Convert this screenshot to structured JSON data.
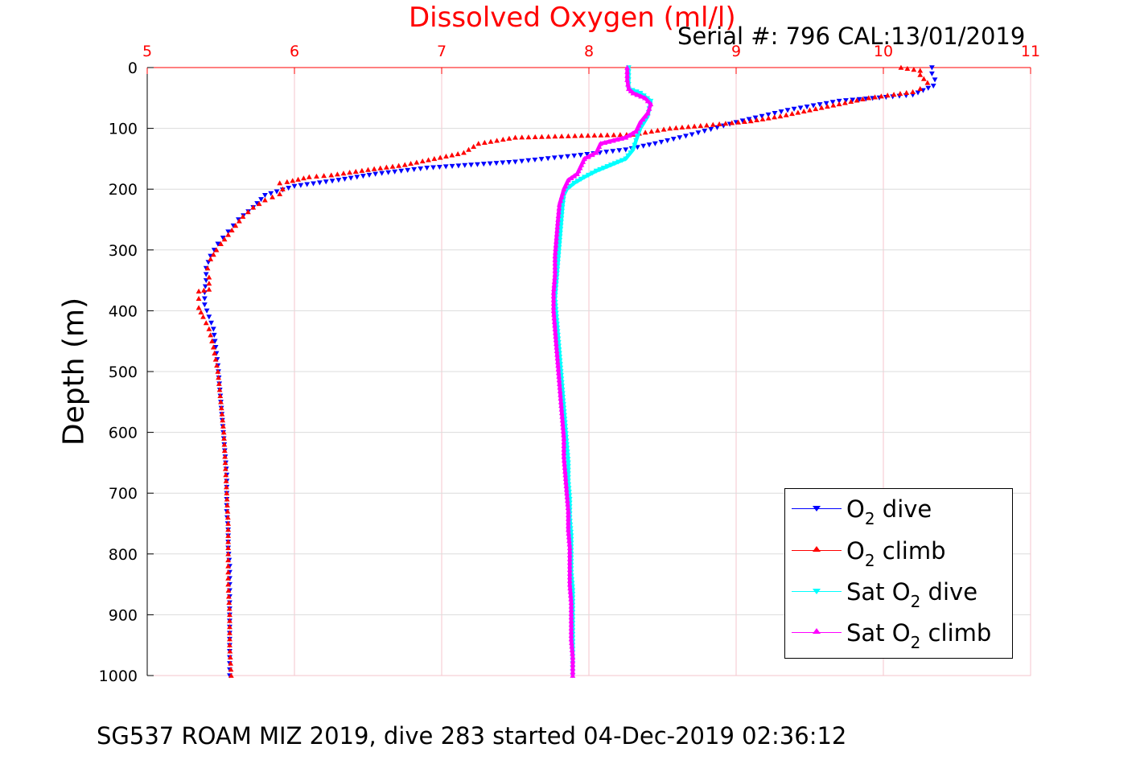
{
  "header": {
    "title": "Dissolved Oxygen (ml/l)",
    "serial": "Serial #: 796  CAL:13/01/2019"
  },
  "footer": {
    "text": "SG537 ROAM MIZ 2019, dive 283 started 04-Dec-2019 02:36:12"
  },
  "colors": {
    "title": "#ff0000",
    "x_ticks": "#ff0000",
    "grid": "#f4c6cc",
    "o2_dive": "#0000ff",
    "o2_climb": "#ff0000",
    "sat_dive": "#00ffff",
    "sat_climb": "#ff00ff"
  },
  "legend": {
    "items": [
      {
        "prefix": "O",
        "sub": "2",
        "suffix": " dive",
        "color": "#0000ff",
        "marker": "triangle-down"
      },
      {
        "prefix": "O",
        "sub": "2",
        "suffix": " climb",
        "color": "#ff0000",
        "marker": "triangle-up"
      },
      {
        "prefix": "Sat O",
        "sub": "2",
        "suffix": " dive",
        "color": "#00ffff",
        "marker": "triangle-down"
      },
      {
        "prefix": "Sat O",
        "sub": "2",
        "suffix": " climb",
        "color": "#ff00ff",
        "marker": "triangle-up"
      }
    ]
  },
  "chart_data": {
    "type": "line",
    "title": "Dissolved Oxygen (ml/l)",
    "xlabel": "",
    "ylabel": "Depth (m)",
    "xlim": [
      5,
      11
    ],
    "ylim": [
      0,
      1000
    ],
    "y_reversed": true,
    "x_axis_position": "top",
    "grid": true,
    "legend_position": "bottom-right",
    "x_ticks": [
      5,
      6,
      7,
      8,
      9,
      10,
      11
    ],
    "y_ticks": [
      0,
      100,
      200,
      300,
      400,
      500,
      600,
      700,
      800,
      900,
      1000
    ],
    "series": [
      {
        "name": "O2 dive",
        "color": "#0000ff",
        "marker": "triangle-down",
        "points": [
          [
            10.33,
            0
          ],
          [
            10.33,
            10
          ],
          [
            10.35,
            20
          ],
          [
            10.34,
            30
          ],
          [
            10.2,
            45
          ],
          [
            9.7,
            55
          ],
          [
            9.35,
            70
          ],
          [
            9.0,
            90
          ],
          [
            8.7,
            110
          ],
          [
            8.45,
            125
          ],
          [
            8.25,
            135
          ],
          [
            7.9,
            145
          ],
          [
            7.5,
            155
          ],
          [
            6.9,
            165
          ],
          [
            6.55,
            175
          ],
          [
            6.3,
            185
          ],
          [
            6.0,
            195
          ],
          [
            5.8,
            210
          ],
          [
            5.72,
            230
          ],
          [
            5.62,
            250
          ],
          [
            5.55,
            270
          ],
          [
            5.48,
            290
          ],
          [
            5.43,
            310
          ],
          [
            5.4,
            330
          ],
          [
            5.4,
            350
          ],
          [
            5.39,
            370
          ],
          [
            5.39,
            390
          ],
          [
            5.42,
            410
          ],
          [
            5.45,
            430
          ],
          [
            5.46,
            450
          ],
          [
            5.47,
            470
          ],
          [
            5.48,
            490
          ],
          [
            5.49,
            520
          ],
          [
            5.5,
            550
          ],
          [
            5.51,
            580
          ],
          [
            5.52,
            610
          ],
          [
            5.53,
            640
          ],
          [
            5.54,
            670
          ],
          [
            5.54,
            700
          ],
          [
            5.54,
            730
          ],
          [
            5.55,
            760
          ],
          [
            5.55,
            790
          ],
          [
            5.56,
            820
          ],
          [
            5.56,
            850
          ],
          [
            5.56,
            880
          ],
          [
            5.56,
            910
          ],
          [
            5.56,
            940
          ],
          [
            5.56,
            970
          ],
          [
            5.56,
            1000
          ]
        ]
      },
      {
        "name": "O2 climb",
        "color": "#ff0000",
        "marker": "triangle-up",
        "points": [
          [
            5.57,
            1000
          ],
          [
            5.56,
            950
          ],
          [
            5.56,
            900
          ],
          [
            5.55,
            850
          ],
          [
            5.55,
            800
          ],
          [
            5.55,
            750
          ],
          [
            5.54,
            700
          ],
          [
            5.53,
            650
          ],
          [
            5.52,
            600
          ],
          [
            5.5,
            550
          ],
          [
            5.48,
            500
          ],
          [
            5.45,
            460
          ],
          [
            5.42,
            430
          ],
          [
            5.38,
            410
          ],
          [
            5.35,
            395
          ],
          [
            5.35,
            380
          ],
          [
            5.35,
            368
          ],
          [
            5.42,
            365
          ],
          [
            5.42,
            345
          ],
          [
            5.41,
            330
          ],
          [
            5.43,
            315
          ],
          [
            5.47,
            300
          ],
          [
            5.5,
            290
          ],
          [
            5.55,
            275
          ],
          [
            5.6,
            260
          ],
          [
            5.65,
            245
          ],
          [
            5.72,
            230
          ],
          [
            5.8,
            218
          ],
          [
            5.9,
            208
          ],
          [
            5.92,
            200
          ],
          [
            5.9,
            190
          ],
          [
            5.95,
            188
          ],
          [
            6.1,
            180
          ],
          [
            6.25,
            177
          ],
          [
            6.5,
            168
          ],
          [
            6.75,
            160
          ],
          [
            6.95,
            150
          ],
          [
            7.15,
            140
          ],
          [
            7.25,
            125
          ],
          [
            7.5,
            115
          ],
          [
            7.95,
            112
          ],
          [
            8.3,
            110
          ],
          [
            8.55,
            100
          ],
          [
            8.8,
            95
          ],
          [
            9.1,
            88
          ],
          [
            9.3,
            80
          ],
          [
            9.5,
            70
          ],
          [
            9.7,
            60
          ],
          [
            9.9,
            50
          ],
          [
            10.2,
            40
          ],
          [
            10.25,
            35
          ],
          [
            10.3,
            25
          ],
          [
            10.25,
            12
          ],
          [
            10.25,
            5
          ],
          [
            10.12,
            0
          ]
        ]
      },
      {
        "name": "Sat O2 dive",
        "color": "#00ffff",
        "marker": "triangle-down",
        "points": [
          [
            8.27,
            0
          ],
          [
            8.27,
            20
          ],
          [
            8.27,
            35
          ],
          [
            8.35,
            42
          ],
          [
            8.42,
            55
          ],
          [
            8.4,
            80
          ],
          [
            8.35,
            100
          ],
          [
            8.32,
            120
          ],
          [
            8.3,
            135
          ],
          [
            8.25,
            150
          ],
          [
            8.15,
            160
          ],
          [
            8.05,
            170
          ],
          [
            7.97,
            180
          ],
          [
            7.9,
            190
          ],
          [
            7.85,
            200
          ],
          [
            7.83,
            210
          ],
          [
            7.82,
            230
          ],
          [
            7.81,
            260
          ],
          [
            7.8,
            290
          ],
          [
            7.79,
            320
          ],
          [
            7.78,
            350
          ],
          [
            7.77,
            380
          ],
          [
            7.78,
            410
          ],
          [
            7.79,
            440
          ],
          [
            7.8,
            470
          ],
          [
            7.81,
            500
          ],
          [
            7.82,
            530
          ],
          [
            7.83,
            560
          ],
          [
            7.84,
            590
          ],
          [
            7.85,
            620
          ],
          [
            7.86,
            650
          ],
          [
            7.86,
            680
          ],
          [
            7.87,
            710
          ],
          [
            7.87,
            740
          ],
          [
            7.88,
            770
          ],
          [
            7.88,
            800
          ],
          [
            7.88,
            830
          ],
          [
            7.89,
            860
          ],
          [
            7.89,
            890
          ],
          [
            7.89,
            920
          ],
          [
            7.89,
            950
          ],
          [
            7.89,
            980
          ],
          [
            7.89,
            1000
          ]
        ]
      },
      {
        "name": "Sat O2 climb",
        "color": "#ff00ff",
        "marker": "triangle-up",
        "points": [
          [
            7.89,
            1000
          ],
          [
            7.89,
            970
          ],
          [
            7.88,
            940
          ],
          [
            7.88,
            910
          ],
          [
            7.88,
            880
          ],
          [
            7.87,
            850
          ],
          [
            7.87,
            820
          ],
          [
            7.87,
            790
          ],
          [
            7.86,
            760
          ],
          [
            7.86,
            730
          ],
          [
            7.85,
            700
          ],
          [
            7.84,
            670
          ],
          [
            7.83,
            640
          ],
          [
            7.83,
            610
          ],
          [
            7.82,
            580
          ],
          [
            7.81,
            550
          ],
          [
            7.8,
            520
          ],
          [
            7.79,
            490
          ],
          [
            7.78,
            460
          ],
          [
            7.77,
            430
          ],
          [
            7.76,
            400
          ],
          [
            7.76,
            370
          ],
          [
            7.77,
            340
          ],
          [
            7.77,
            310
          ],
          [
            7.78,
            280
          ],
          [
            7.79,
            250
          ],
          [
            7.8,
            225
          ],
          [
            7.83,
            200
          ],
          [
            7.86,
            185
          ],
          [
            7.92,
            175
          ],
          [
            7.95,
            160
          ],
          [
            7.97,
            150
          ],
          [
            8.05,
            140
          ],
          [
            8.08,
            125
          ],
          [
            8.25,
            115
          ],
          [
            8.32,
            105
          ],
          [
            8.35,
            90
          ],
          [
            8.4,
            75
          ],
          [
            8.42,
            60
          ],
          [
            8.38,
            50
          ],
          [
            8.3,
            42
          ],
          [
            8.27,
            35
          ],
          [
            8.26,
            20
          ],
          [
            8.26,
            0
          ]
        ]
      }
    ]
  }
}
